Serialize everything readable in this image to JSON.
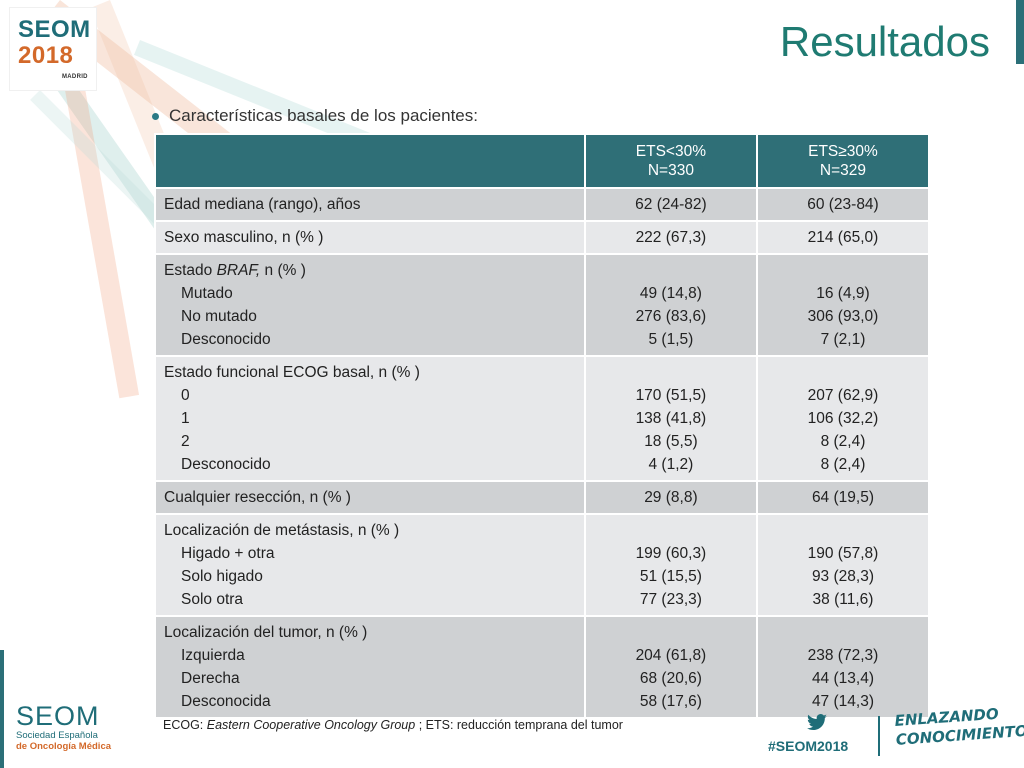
{
  "logo": {
    "line1": "SEOM",
    "line2": "2018",
    "city": "MADRID"
  },
  "title": "Resultados",
  "bullet": "Características basales de los pacientes:",
  "table": {
    "headers": [
      {
        "line1": "",
        "line2": ""
      },
      {
        "line1": "ETS<30%",
        "line2": "N=330"
      },
      {
        "line1": "ETS≥30%",
        "line2": "N=329"
      }
    ],
    "rows": [
      {
        "label": "Edad mediana (rango), años",
        "label_italic": "",
        "label_suffix": "",
        "subs": [],
        "a_main": "62 (24-82)",
        "b_main": "60 (23-84)",
        "a": [],
        "b": []
      },
      {
        "label": "Sexo masculino, n (% )",
        "label_italic": "",
        "label_suffix": "",
        "subs": [],
        "a_main": "222 (67,3)",
        "b_main": "214 (65,0)",
        "a": [],
        "b": []
      },
      {
        "label": "Estado ",
        "label_italic": "BRAF,",
        "label_suffix": " n (% )",
        "subs": [
          "Mutado",
          "No mutado",
          "Desconocido"
        ],
        "a_main": "",
        "b_main": "",
        "a": [
          "49 (14,8)",
          "276 (83,6)",
          "5 (1,5)"
        ],
        "b": [
          "16 (4,9)",
          "306 (93,0)",
          "7 (2,1)"
        ]
      },
      {
        "label": "Estado funcional ECOG basal, n (% )",
        "label_italic": "",
        "label_suffix": "",
        "subs": [
          "0",
          "1",
          "2",
          "Desconocido"
        ],
        "a_main": "",
        "b_main": "",
        "a": [
          "170 (51,5)",
          "138 (41,8)",
          "18 (5,5)",
          "4 (1,2)"
        ],
        "b": [
          "207 (62,9)",
          "106 (32,2)",
          "8 (2,4)",
          "8 (2,4)"
        ]
      },
      {
        "label": "Cualquier resección, n (% )",
        "label_italic": "",
        "label_suffix": "",
        "subs": [],
        "a_main": "29 (8,8)",
        "b_main": "64 (19,5)",
        "a": [],
        "b": []
      },
      {
        "label": "Localización de metástasis, n (% )",
        "label_italic": "",
        "label_suffix": "",
        "subs": [
          "Higado + otra",
          "Solo higado",
          "Solo otra"
        ],
        "a_main": "",
        "b_main": "",
        "a": [
          "199 (60,3)",
          "51 (15,5)",
          "77 (23,3)"
        ],
        "b": [
          "190 (57,8)",
          "93 (28,3)",
          "38 (11,6)"
        ]
      },
      {
        "label": "Localización del tumor, n (% )",
        "label_italic": "",
        "label_suffix": "",
        "subs": [
          "Izquierda",
          "Derecha",
          "Desconocida"
        ],
        "a_main": "",
        "b_main": "",
        "a": [
          "204 (61,8)",
          "68 (20,6)",
          "58 (17,6)"
        ],
        "b": [
          "238 (72,3)",
          "44 (13,4)",
          "47 (14,3)"
        ]
      }
    ]
  },
  "footnote": {
    "prefix": "ECOG: ",
    "italic": "Eastern Cooperative Oncology Group",
    "suffix": " ; ETS: reducción temprana del tumor"
  },
  "bottom_logo": {
    "name": "SEOM",
    "line1": "Sociedad Española",
    "line2": "de Oncología Médica"
  },
  "hashtag": "#SEOM2018",
  "slogan": {
    "line1": "ENLAZANDO",
    "line2": "CONOCIMIENTO"
  },
  "colors": {
    "header_bg": "#2f6f77",
    "row_dark": "#cfd1d3",
    "row_light": "#e7e8ea",
    "title": "#1f7b72",
    "brand_teal": "#1f6d78",
    "brand_orange": "#d3692a"
  },
  "icons": {
    "bullet": "bullet-dot",
    "social": "twitter-icon"
  }
}
